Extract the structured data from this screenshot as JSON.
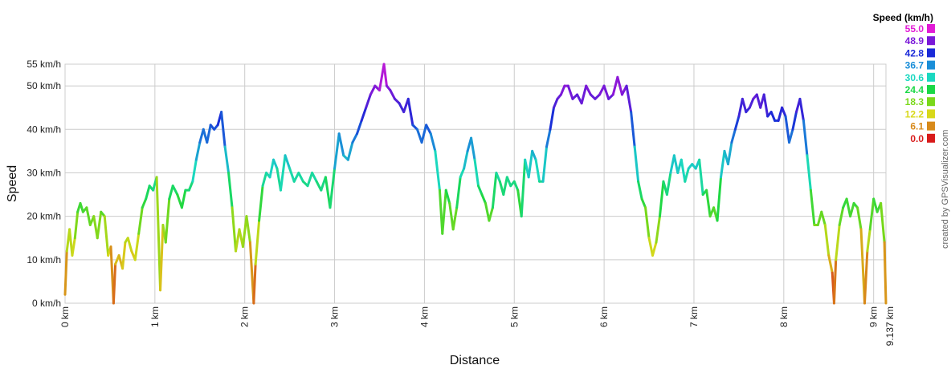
{
  "chart_data": {
    "type": "line",
    "xlabel": "Distance",
    "ylabel": "Speed",
    "xlim": [
      0,
      9.137
    ],
    "ylim": [
      0,
      55
    ],
    "x_ticks": [
      {
        "value": 0,
        "label": "0 km"
      },
      {
        "value": 1,
        "label": "1 km"
      },
      {
        "value": 2,
        "label": "2 km"
      },
      {
        "value": 3,
        "label": "3 km"
      },
      {
        "value": 4,
        "label": "4 km"
      },
      {
        "value": 5,
        "label": "5 km"
      },
      {
        "value": 6,
        "label": "6 km"
      },
      {
        "value": 7,
        "label": "7 km"
      },
      {
        "value": 8,
        "label": "8 km"
      },
      {
        "value": 9,
        "label": "9 km"
      },
      {
        "value": 9.137,
        "label": "9.137 km"
      }
    ],
    "y_ticks": [
      {
        "value": 0,
        "label": "0 km/h"
      },
      {
        "value": 10,
        "label": "10 km/h"
      },
      {
        "value": 20,
        "label": "20 km/h"
      },
      {
        "value": 30,
        "label": "30 km/h"
      },
      {
        "value": 40,
        "label": "40 km/h"
      },
      {
        "value": 50,
        "label": "50 km/h"
      },
      {
        "value": 55,
        "label": "55 km/h"
      }
    ],
    "grid": true,
    "legend": {
      "title": "Speed (km/h)",
      "placement": "top-right",
      "entries": [
        {
          "label": "55.0",
          "color": "#e21ad6"
        },
        {
          "label": "48.9",
          "color": "#7a18d8"
        },
        {
          "label": "42.8",
          "color": "#1a2ad8"
        },
        {
          "label": "36.7",
          "color": "#1a8ed8"
        },
        {
          "label": "30.6",
          "color": "#1ad8c0"
        },
        {
          "label": "24.4",
          "color": "#1ad846"
        },
        {
          "label": "18.3",
          "color": "#7ad81a"
        },
        {
          "label": "12.2",
          "color": "#d8d81a"
        },
        {
          "label": "6.1",
          "color": "#d88a1a"
        },
        {
          "label": "0.0",
          "color": "#d81a1a"
        }
      ]
    },
    "series": [
      {
        "points": [
          [
            0.0,
            2
          ],
          [
            0.02,
            12
          ],
          [
            0.05,
            17
          ],
          [
            0.08,
            11
          ],
          [
            0.11,
            15
          ],
          [
            0.14,
            21
          ],
          [
            0.17,
            23
          ],
          [
            0.2,
            21
          ],
          [
            0.24,
            22
          ],
          [
            0.28,
            18
          ],
          [
            0.32,
            20
          ],
          [
            0.36,
            15
          ],
          [
            0.4,
            21
          ],
          [
            0.44,
            20
          ],
          [
            0.48,
            11
          ],
          [
            0.51,
            13
          ],
          [
            0.54,
            0
          ],
          [
            0.56,
            9
          ],
          [
            0.6,
            11
          ],
          [
            0.64,
            8
          ],
          [
            0.67,
            14
          ],
          [
            0.7,
            15
          ],
          [
            0.74,
            12
          ],
          [
            0.78,
            10
          ],
          [
            0.82,
            16
          ],
          [
            0.86,
            22
          ],
          [
            0.9,
            24
          ],
          [
            0.94,
            27
          ],
          [
            0.98,
            26
          ],
          [
            1.02,
            29
          ],
          [
            1.06,
            3
          ],
          [
            1.09,
            18
          ],
          [
            1.12,
            14
          ],
          [
            1.16,
            24
          ],
          [
            1.2,
            27
          ],
          [
            1.25,
            25
          ],
          [
            1.3,
            22
          ],
          [
            1.34,
            26
          ],
          [
            1.38,
            26
          ],
          [
            1.42,
            28
          ],
          [
            1.46,
            33
          ],
          [
            1.5,
            37
          ],
          [
            1.54,
            40
          ],
          [
            1.58,
            37
          ],
          [
            1.62,
            41
          ],
          [
            1.66,
            40
          ],
          [
            1.7,
            41
          ],
          [
            1.74,
            44
          ],
          [
            1.78,
            36
          ],
          [
            1.82,
            30
          ],
          [
            1.86,
            22
          ],
          [
            1.9,
            12
          ],
          [
            1.94,
            17
          ],
          [
            1.98,
            13
          ],
          [
            2.02,
            20
          ],
          [
            2.06,
            14
          ],
          [
            2.1,
            0
          ],
          [
            2.12,
            9
          ],
          [
            2.16,
            19
          ],
          [
            2.2,
            27
          ],
          [
            2.24,
            30
          ],
          [
            2.28,
            29
          ],
          [
            2.32,
            33
          ],
          [
            2.36,
            31
          ],
          [
            2.4,
            26
          ],
          [
            2.45,
            34
          ],
          [
            2.5,
            31
          ],
          [
            2.55,
            28
          ],
          [
            2.6,
            30
          ],
          [
            2.65,
            28
          ],
          [
            2.7,
            27
          ],
          [
            2.75,
            30
          ],
          [
            2.8,
            28
          ],
          [
            2.85,
            26
          ],
          [
            2.9,
            29
          ],
          [
            2.95,
            22
          ],
          [
            3.0,
            31
          ],
          [
            3.05,
            39
          ],
          [
            3.1,
            34
          ],
          [
            3.15,
            33
          ],
          [
            3.2,
            37
          ],
          [
            3.25,
            39
          ],
          [
            3.3,
            42
          ],
          [
            3.35,
            45
          ],
          [
            3.4,
            48
          ],
          [
            3.45,
            50
          ],
          [
            3.5,
            49
          ],
          [
            3.55,
            55
          ],
          [
            3.58,
            50
          ],
          [
            3.62,
            49
          ],
          [
            3.67,
            47
          ],
          [
            3.72,
            46
          ],
          [
            3.77,
            44
          ],
          [
            3.82,
            47
          ],
          [
            3.87,
            41
          ],
          [
            3.92,
            40
          ],
          [
            3.97,
            37
          ],
          [
            4.02,
            41
          ],
          [
            4.07,
            39
          ],
          [
            4.12,
            35
          ],
          [
            4.17,
            26
          ],
          [
            4.2,
            16
          ],
          [
            4.24,
            26
          ],
          [
            4.28,
            23
          ],
          [
            4.32,
            17
          ],
          [
            4.36,
            22
          ],
          [
            4.4,
            29
          ],
          [
            4.44,
            31
          ],
          [
            4.48,
            35
          ],
          [
            4.52,
            38
          ],
          [
            4.56,
            33
          ],
          [
            4.6,
            27
          ],
          [
            4.64,
            25
          ],
          [
            4.68,
            23
          ],
          [
            4.72,
            19
          ],
          [
            4.76,
            22
          ],
          [
            4.8,
            30
          ],
          [
            4.84,
            28
          ],
          [
            4.88,
            25
          ],
          [
            4.92,
            29
          ],
          [
            4.96,
            27
          ],
          [
            5.0,
            28
          ],
          [
            5.04,
            26
          ],
          [
            5.08,
            20
          ],
          [
            5.12,
            33
          ],
          [
            5.16,
            29
          ],
          [
            5.2,
            35
          ],
          [
            5.24,
            33
          ],
          [
            5.28,
            28
          ],
          [
            5.32,
            28
          ],
          [
            5.36,
            36
          ],
          [
            5.4,
            40
          ],
          [
            5.44,
            45
          ],
          [
            5.48,
            47
          ],
          [
            5.52,
            48
          ],
          [
            5.56,
            50
          ],
          [
            5.6,
            50
          ],
          [
            5.65,
            47
          ],
          [
            5.7,
            48
          ],
          [
            5.75,
            46
          ],
          [
            5.8,
            50
          ],
          [
            5.85,
            48
          ],
          [
            5.9,
            47
          ],
          [
            5.95,
            48
          ],
          [
            6.0,
            50
          ],
          [
            6.05,
            47
          ],
          [
            6.1,
            48
          ],
          [
            6.15,
            52
          ],
          [
            6.2,
            48
          ],
          [
            6.25,
            50
          ],
          [
            6.3,
            44
          ],
          [
            6.34,
            36
          ],
          [
            6.38,
            28
          ],
          [
            6.42,
            24
          ],
          [
            6.46,
            22
          ],
          [
            6.5,
            15
          ],
          [
            6.54,
            11
          ],
          [
            6.58,
            14
          ],
          [
            6.62,
            20
          ],
          [
            6.66,
            28
          ],
          [
            6.7,
            25
          ],
          [
            6.74,
            30
          ],
          [
            6.78,
            34
          ],
          [
            6.82,
            30
          ],
          [
            6.86,
            33
          ],
          [
            6.9,
            28
          ],
          [
            6.94,
            31
          ],
          [
            6.98,
            32
          ],
          [
            7.02,
            31
          ],
          [
            7.06,
            33
          ],
          [
            7.1,
            25
          ],
          [
            7.14,
            26
          ],
          [
            7.18,
            20
          ],
          [
            7.22,
            22
          ],
          [
            7.26,
            19
          ],
          [
            7.3,
            29
          ],
          [
            7.34,
            35
          ],
          [
            7.38,
            32
          ],
          [
            7.42,
            37
          ],
          [
            7.46,
            40
          ],
          [
            7.5,
            43
          ],
          [
            7.54,
            47
          ],
          [
            7.58,
            44
          ],
          [
            7.62,
            45
          ],
          [
            7.66,
            47
          ],
          [
            7.7,
            48
          ],
          [
            7.74,
            45
          ],
          [
            7.78,
            48
          ],
          [
            7.82,
            43
          ],
          [
            7.86,
            44
          ],
          [
            7.9,
            42
          ],
          [
            7.94,
            42
          ],
          [
            7.98,
            45
          ],
          [
            8.02,
            43
          ],
          [
            8.06,
            37
          ],
          [
            8.1,
            40
          ],
          [
            8.14,
            44
          ],
          [
            8.18,
            47
          ],
          [
            8.22,
            42
          ],
          [
            8.26,
            34
          ],
          [
            8.3,
            26
          ],
          [
            8.34,
            18
          ],
          [
            8.38,
            18
          ],
          [
            8.42,
            21
          ],
          [
            8.46,
            18
          ],
          [
            8.5,
            11
          ],
          [
            8.54,
            7
          ],
          [
            8.56,
            0
          ],
          [
            8.58,
            10
          ],
          [
            8.62,
            18
          ],
          [
            8.66,
            22
          ],
          [
            8.7,
            24
          ],
          [
            8.74,
            20
          ],
          [
            8.78,
            23
          ],
          [
            8.82,
            22
          ],
          [
            8.86,
            17
          ],
          [
            8.9,
            0
          ],
          [
            8.93,
            12
          ],
          [
            8.96,
            17
          ],
          [
            9.0,
            24
          ],
          [
            9.04,
            21
          ],
          [
            9.08,
            23
          ],
          [
            9.12,
            14
          ],
          [
            9.137,
            0
          ]
        ]
      }
    ]
  }
}
